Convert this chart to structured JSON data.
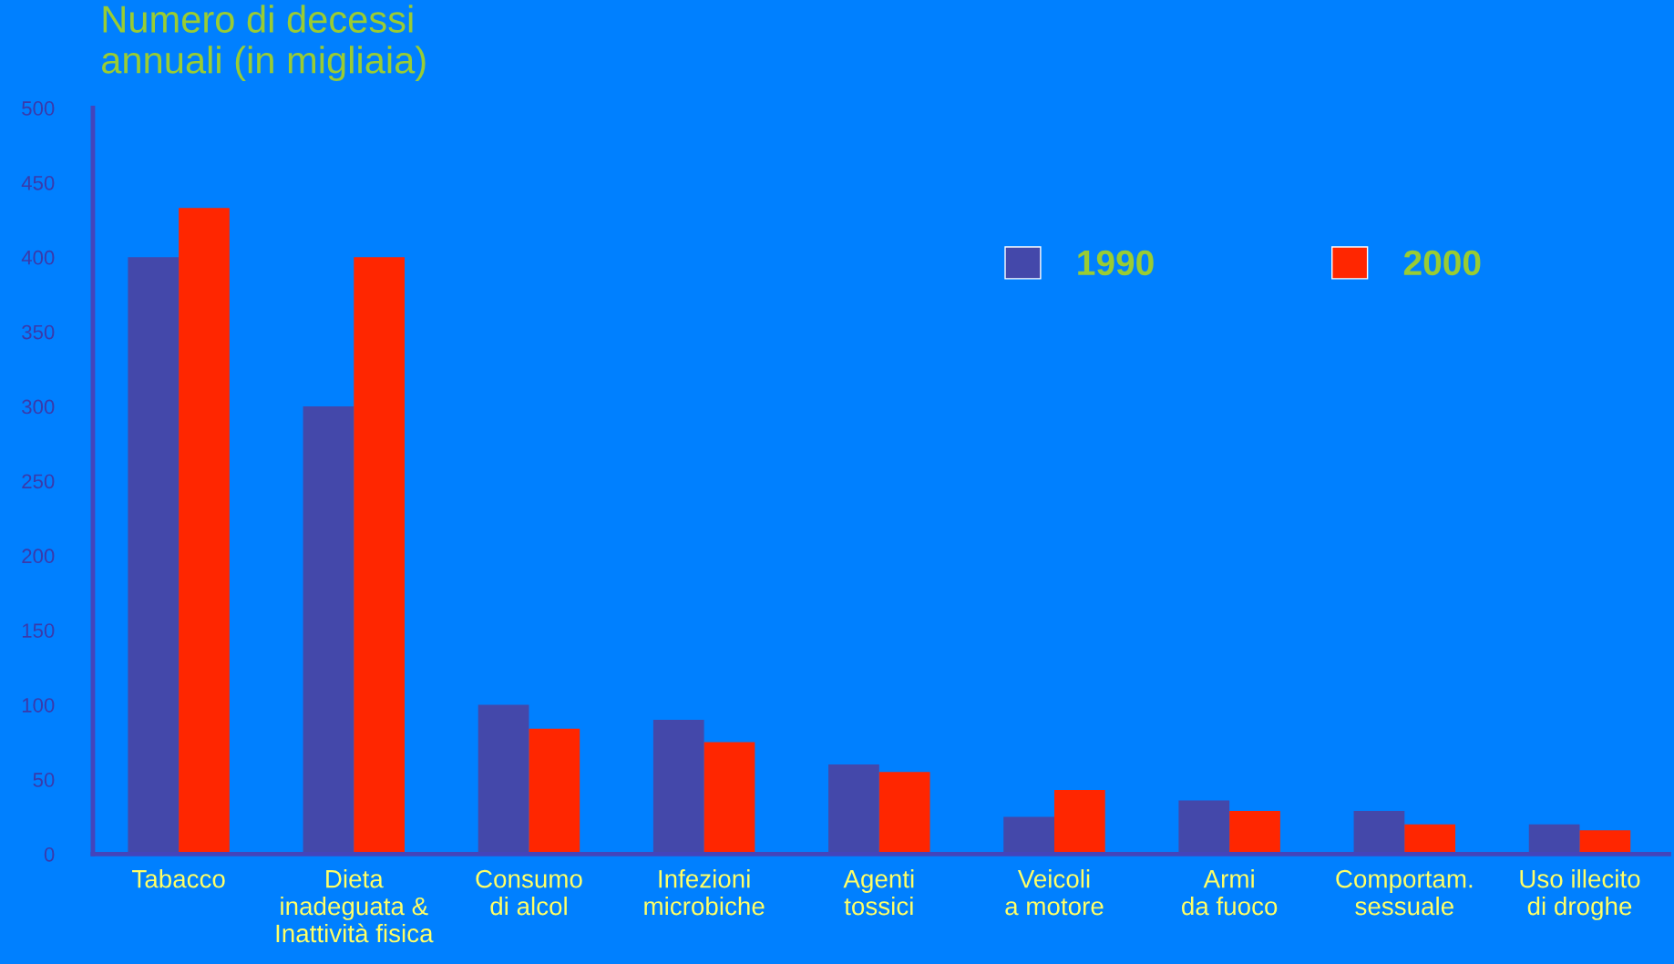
{
  "chart_data": {
    "type": "bar",
    "title": "Numero di decessi\nannuali (in migliaia)",
    "categories": [
      "Tabacco",
      "Dieta\ninadeguata &\nInattività fisica",
      "Consumo\ndi alcol",
      "Infezioni\nmicrobiche",
      "Agenti\ntossici",
      "Veicoli\na motore",
      "Armi\nda fuoco",
      "Comportam.\nsessuale",
      "Uso illecito\ndi droghe"
    ],
    "series": [
      {
        "name": "1990",
        "color": "#4448aa",
        "values": [
          400,
          300,
          100,
          90,
          60,
          25,
          36,
          29,
          20
        ]
      },
      {
        "name": "2000",
        "color": "#ff2600",
        "values": [
          433,
          400,
          84,
          75,
          55,
          43,
          29,
          20,
          16
        ]
      }
    ],
    "ylim": [
      0,
      500
    ],
    "yticks": [
      0,
      50,
      100,
      150,
      200,
      250,
      300,
      350,
      400,
      450,
      500
    ],
    "grid": false,
    "legend": "top right"
  }
}
